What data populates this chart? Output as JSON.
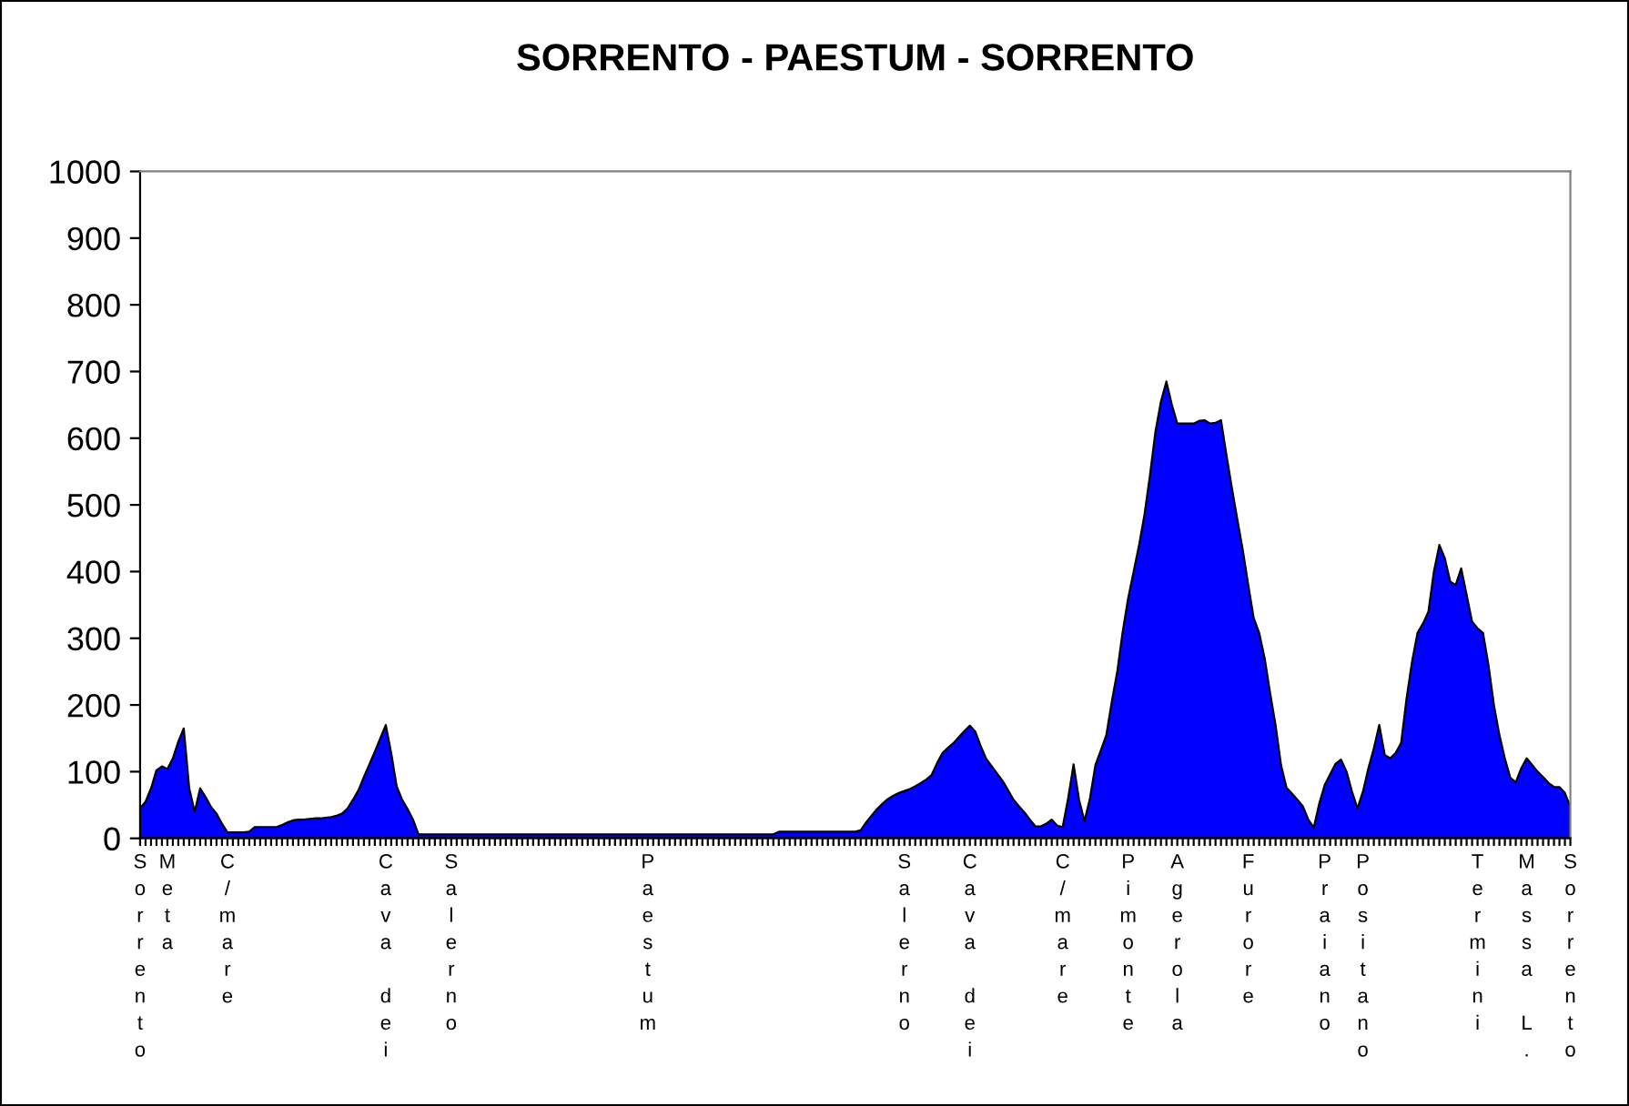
{
  "chart_data": {
    "type": "area",
    "title": "SORRENTO - PAESTUM - SORRENTO",
    "categories": [
      "Sorrento",
      null,
      null,
      null,
      null,
      "Meta",
      null,
      null,
      null,
      null,
      null,
      null,
      null,
      null,
      null,
      null,
      "C/mare",
      null,
      null,
      null,
      null,
      null,
      null,
      null,
      null,
      null,
      null,
      null,
      null,
      null,
      null,
      null,
      null,
      null,
      null,
      null,
      null,
      null,
      null,
      null,
      null,
      null,
      null,
      null,
      null,
      "Cava dei",
      null,
      null,
      null,
      null,
      null,
      null,
      null,
      null,
      null,
      null,
      null,
      "Salerno",
      null,
      null,
      null,
      null,
      null,
      null,
      null,
      null,
      null,
      null,
      null,
      null,
      null,
      null,
      null,
      null,
      null,
      null,
      null,
      null,
      null,
      null,
      null,
      null,
      null,
      null,
      null,
      null,
      null,
      null,
      null,
      null,
      null,
      null,
      null,
      "Paestum",
      null,
      null,
      null,
      null,
      null,
      null,
      null,
      null,
      null,
      null,
      null,
      null,
      null,
      null,
      null,
      null,
      null,
      null,
      null,
      null,
      null,
      null,
      null,
      null,
      null,
      null,
      null,
      null,
      null,
      null,
      null,
      null,
      null,
      null,
      null,
      null,
      null,
      null,
      null,
      null,
      null,
      null,
      null,
      null,
      null,
      null,
      "Salerno",
      null,
      null,
      null,
      null,
      null,
      null,
      null,
      null,
      null,
      null,
      null,
      "Cava dei",
      null,
      null,
      null,
      null,
      null,
      null,
      null,
      null,
      null,
      null,
      null,
      null,
      null,
      null,
      null,
      null,
      "C/mare",
      null,
      null,
      null,
      null,
      null,
      null,
      null,
      null,
      null,
      null,
      null,
      "Pimonte",
      null,
      null,
      null,
      null,
      null,
      null,
      null,
      null,
      "Agerola",
      null,
      null,
      null,
      null,
      null,
      null,
      null,
      null,
      null,
      null,
      null,
      null,
      "Furore",
      null,
      null,
      null,
      null,
      null,
      null,
      null,
      null,
      null,
      null,
      null,
      null,
      null,
      "Praiano",
      null,
      null,
      null,
      null,
      null,
      null,
      "Positano",
      null,
      null,
      null,
      null,
      null,
      null,
      null,
      null,
      null,
      null,
      null,
      null,
      null,
      null,
      null,
      null,
      null,
      null,
      null,
      null,
      "Termini",
      null,
      null,
      null,
      null,
      null,
      null,
      null,
      null,
      "Massa L.",
      null,
      null,
      null,
      null,
      null,
      null,
      null,
      "Sorrento"
    ],
    "values": [
      45,
      55,
      75,
      102,
      108,
      104,
      120,
      145,
      165,
      75,
      40,
      75,
      62,
      47,
      37,
      22,
      9,
      9,
      9,
      9,
      10,
      17,
      17,
      17,
      17,
      17,
      20,
      24,
      27,
      28,
      28,
      29,
      30,
      30,
      31,
      32,
      34,
      37,
      45,
      58,
      72,
      92,
      111,
      130,
      150,
      170,
      128,
      78,
      58,
      44,
      28,
      6,
      6,
      6,
      6,
      6,
      6,
      6,
      6,
      6,
      6,
      6,
      6,
      6,
      6,
      6,
      6,
      6,
      6,
      6,
      6,
      6,
      6,
      6,
      6,
      6,
      6,
      6,
      6,
      6,
      6,
      6,
      6,
      6,
      6,
      6,
      6,
      6,
      6,
      6,
      6,
      6,
      6,
      6,
      6,
      6,
      6,
      6,
      6,
      6,
      6,
      6,
      6,
      6,
      6,
      6,
      6,
      6,
      6,
      6,
      6,
      6,
      6,
      6,
      6,
      6,
      6,
      10,
      10,
      10,
      10,
      10,
      10,
      10,
      10,
      10,
      10,
      10,
      10,
      10,
      10,
      10,
      12,
      24,
      34,
      44,
      52,
      59,
      64,
      68,
      71,
      74,
      78,
      83,
      88,
      95,
      113,
      128,
      136,
      143,
      152,
      161,
      169,
      160,
      138,
      119,
      108,
      97,
      86,
      72,
      58,
      48,
      39,
      28,
      18,
      18,
      22,
      28,
      19,
      17,
      60,
      111,
      58,
      26,
      60,
      110,
      132,
      155,
      205,
      250,
      310,
      360,
      400,
      440,
      486,
      545,
      610,
      655,
      685,
      650,
      622,
      622,
      622,
      622,
      626,
      627,
      622,
      623,
      627,
      575,
      525,
      478,
      432,
      380,
      330,
      308,
      270,
      218,
      170,
      110,
      76,
      67,
      58,
      48,
      28,
      16,
      52,
      80,
      96,
      112,
      118,
      100,
      70,
      45,
      70,
      105,
      135,
      170,
      125,
      120,
      128,
      143,
      210,
      265,
      308,
      322,
      340,
      400,
      440,
      420,
      385,
      380,
      405,
      365,
      325,
      315,
      308,
      260,
      200,
      155,
      120,
      91,
      84,
      105,
      120,
      110,
      100,
      92,
      83,
      77,
      77,
      68,
      47
    ],
    "color": "#0000ff",
    "ylim": [
      0,
      1000
    ],
    "yticks": [
      0,
      100,
      200,
      300,
      400,
      500,
      600,
      700,
      800,
      900,
      1000
    ],
    "grid": false,
    "legend": false
  }
}
